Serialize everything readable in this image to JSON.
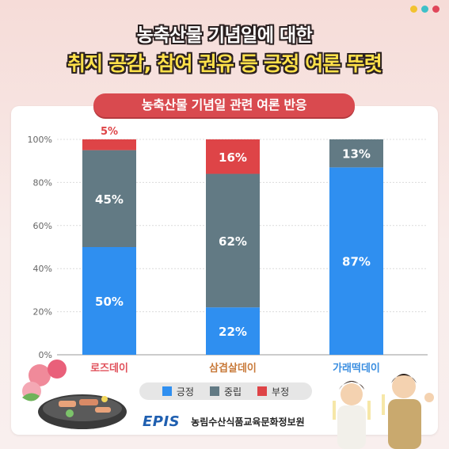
{
  "header": {
    "title_line1": "농축산물 기념일에 대한",
    "title_line2": "취지 공감, 참여 권유 등 긍정 여론 뚜렷",
    "dot_colors": [
      "#f2c230",
      "#3fc0c8",
      "#e0465a"
    ]
  },
  "panel": {
    "banner": "농축산물 기념일 관련 여론 반응"
  },
  "chart_data": {
    "type": "bar",
    "stacked": true,
    "title": "농축산물 기념일 관련 여론 반응",
    "categories": [
      "로즈데이",
      "삼겹살데이",
      "가래떡데이"
    ],
    "category_colors": [
      "#e0505a",
      "#c87a3a",
      "#3a8ee0"
    ],
    "series": [
      {
        "name": "긍정",
        "values": [
          50,
          22,
          87
        ],
        "labels": [
          "50%",
          "22%",
          "87%"
        ],
        "color": "#2f8ff0"
      },
      {
        "name": "중립",
        "values": [
          45,
          62,
          13
        ],
        "labels": [
          "45%",
          "62%",
          "13%"
        ],
        "color": "#627a84"
      },
      {
        "name": "부정",
        "values": [
          5,
          16,
          0
        ],
        "labels": [
          "5%",
          "16%",
          ""
        ],
        "color": "#de4447"
      }
    ],
    "yticks": [
      "0%",
      "20%",
      "40%",
      "60%",
      "80%",
      "100%"
    ],
    "ylim": [
      0,
      100
    ],
    "grid": true,
    "legend": "bottom"
  },
  "footer": {
    "logo": "EPIS",
    "org": "농림수산식품교육문화정보원"
  }
}
